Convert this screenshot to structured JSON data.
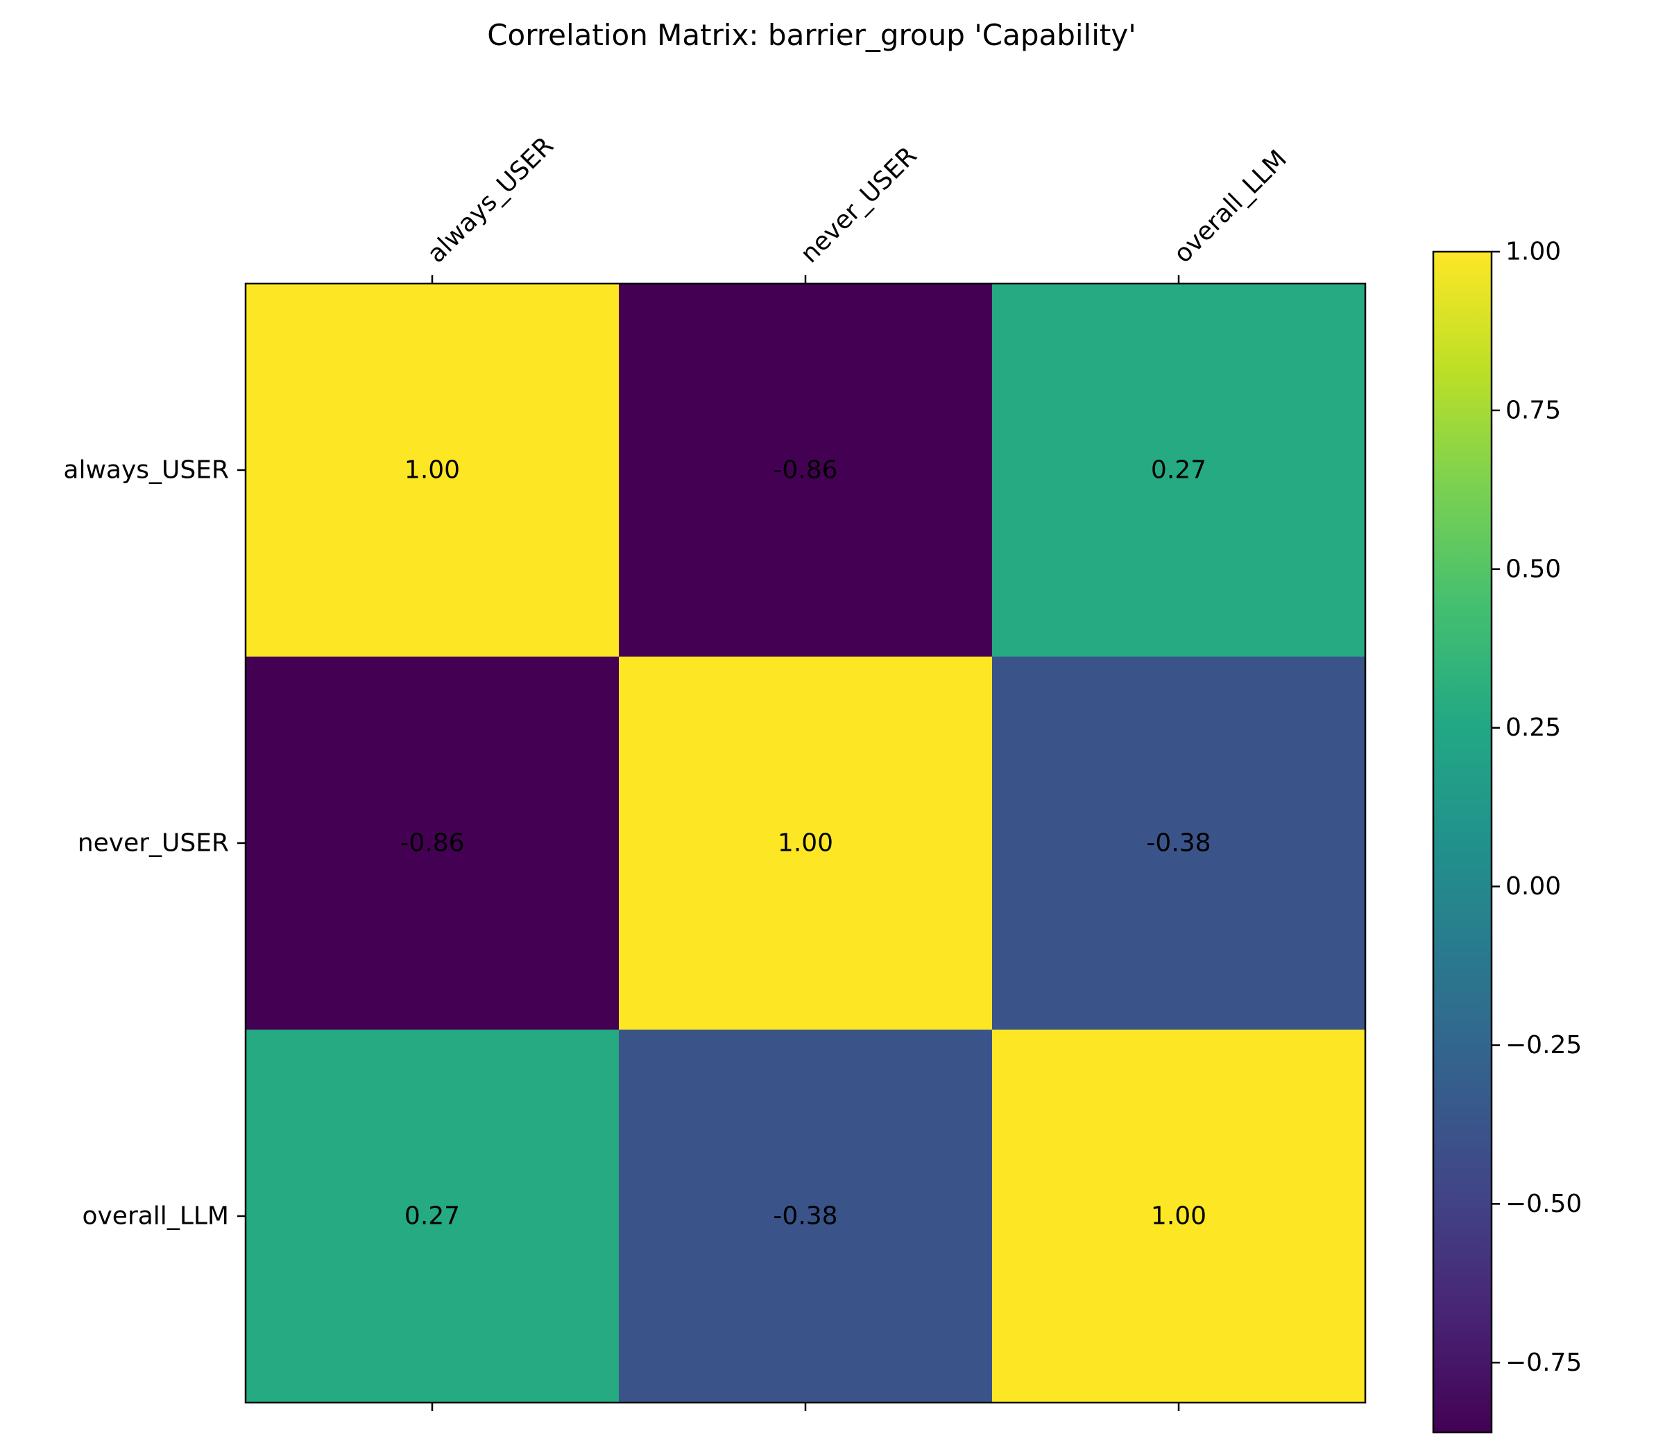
{
  "chart_data": {
    "type": "heatmap",
    "title": "Correlation Matrix: barrier_group 'Capability'",
    "xlabel": "",
    "ylabel": "",
    "x_categories": [
      "always_USER",
      "never_USER",
      "overall_LLM"
    ],
    "y_categories": [
      "always_USER",
      "never_USER",
      "overall_LLM"
    ],
    "matrix": [
      [
        1.0,
        -0.86,
        0.27
      ],
      [
        -0.86,
        1.0,
        -0.38
      ],
      [
        0.27,
        -0.38,
        1.0
      ]
    ],
    "cell_labels": [
      [
        "1.00",
        "-0.86",
        "0.27"
      ],
      [
        "-0.86",
        "1.00",
        "-0.38"
      ],
      [
        "0.27",
        "-0.38",
        "1.00"
      ]
    ],
    "colormap": "viridis",
    "colorbar": {
      "range": [
        -0.86,
        1.0
      ],
      "ticks": [
        1.0,
        0.75,
        0.5,
        0.25,
        0.0,
        -0.25,
        -0.5,
        -0.75
      ],
      "tick_labels": [
        "1.00",
        "0.75",
        "0.50",
        "0.25",
        "0.00",
        "−0.25",
        "−0.50",
        "−0.75"
      ]
    }
  }
}
